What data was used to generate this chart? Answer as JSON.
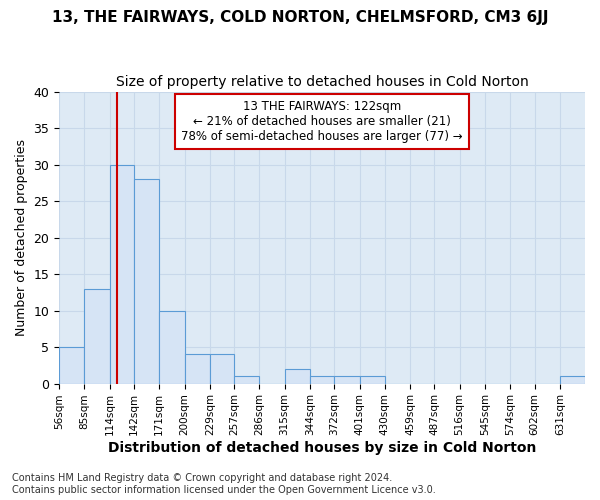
{
  "title1": "13, THE FAIRWAYS, COLD NORTON, CHELMSFORD, CM3 6JJ",
  "title2": "Size of property relative to detached houses in Cold Norton",
  "xlabel": "Distribution of detached houses by size in Cold Norton",
  "ylabel": "Number of detached properties",
  "footnote": "Contains HM Land Registry data © Crown copyright and database right 2024.\nContains public sector information licensed under the Open Government Licence v3.0.",
  "bin_labels": [
    "56sqm",
    "85sqm",
    "114sqm",
    "142sqm",
    "171sqm",
    "200sqm",
    "229sqm",
    "257sqm",
    "286sqm",
    "315sqm",
    "344sqm",
    "372sqm",
    "401sqm",
    "430sqm",
    "459sqm",
    "487sqm",
    "516sqm",
    "545sqm",
    "574sqm",
    "602sqm",
    "631sqm"
  ],
  "bin_edges": [
    56,
    85,
    114,
    142,
    171,
    200,
    229,
    257,
    286,
    315,
    344,
    372,
    401,
    430,
    459,
    487,
    516,
    545,
    574,
    602,
    631,
    660
  ],
  "counts": [
    5,
    13,
    30,
    28,
    10,
    4,
    4,
    1,
    0,
    2,
    1,
    1,
    1,
    0,
    0,
    0,
    0,
    0,
    0,
    0,
    1
  ],
  "property_size": 122,
  "bar_color": "#d6e4f5",
  "bar_edge_color": "#5b9bd5",
  "line_color": "#cc0000",
  "annotation_text": "13 THE FAIRWAYS: 122sqm\n← 21% of detached houses are smaller (21)\n78% of semi-detached houses are larger (77) →",
  "annotation_box_color": "#ffffff",
  "annotation_box_edge": "#cc0000",
  "ylim": [
    0,
    40
  ],
  "yticks": [
    0,
    5,
    10,
    15,
    20,
    25,
    30,
    35,
    40
  ],
  "grid_color": "#c8d8ea",
  "bg_color": "#deeaf5",
  "fig_bg_color": "#ffffff",
  "title1_fontsize": 11,
  "title2_fontsize": 10,
  "xlabel_fontsize": 10,
  "ylabel_fontsize": 9,
  "footnote_fontsize": 7
}
